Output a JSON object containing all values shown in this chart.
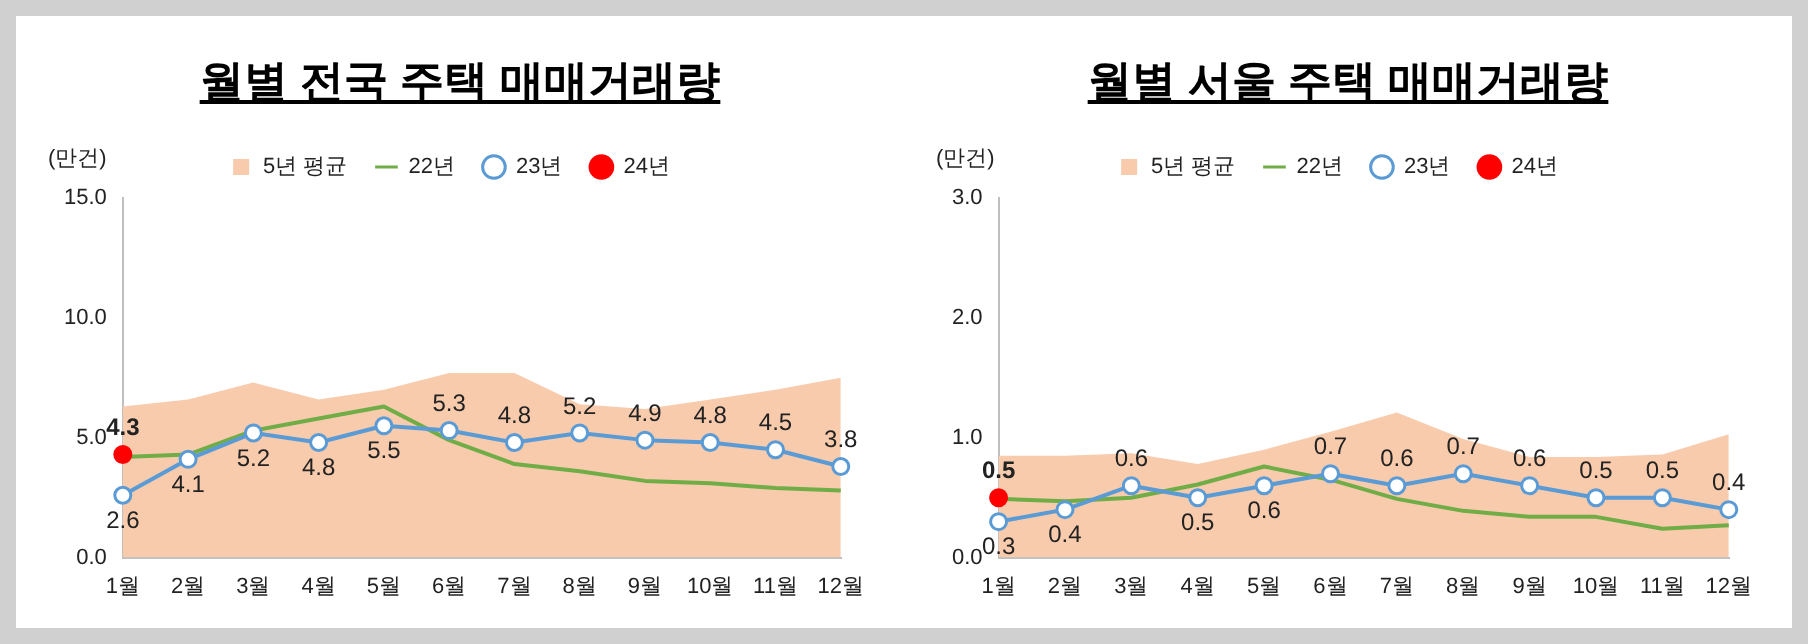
{
  "chart_data": [
    {
      "type": "line",
      "title": "월별 전국 주택 매매거래량",
      "ylabel": "(만건)",
      "categories": [
        "1월",
        "2월",
        "3월",
        "4월",
        "5월",
        "6월",
        "7월",
        "8월",
        "9월",
        "10월",
        "11월",
        "12월"
      ],
      "ylim": [
        0,
        15
      ],
      "yticks": [
        {
          "value": 0,
          "label": "0.0"
        },
        {
          "value": 5,
          "label": "5.0"
        },
        {
          "value": 10,
          "label": "10.0"
        },
        {
          "value": 15,
          "label": "15.0"
        }
      ],
      "grid": false,
      "legend": "top",
      "series": [
        {
          "name": "5년 평균",
          "type": "area",
          "color": "#f8cbad",
          "values": [
            6.3,
            6.6,
            7.3,
            6.6,
            7.0,
            7.7,
            7.7,
            6.4,
            6.2,
            6.6,
            7.0,
            7.5
          ]
        },
        {
          "name": "22년",
          "color": "#70ad47",
          "marker": "none",
          "values": [
            4.2,
            4.3,
            5.3,
            5.8,
            6.3,
            4.9,
            3.9,
            3.6,
            3.2,
            3.1,
            2.9,
            2.8
          ]
        },
        {
          "name": "23년",
          "color": "#5b9bd5",
          "marker": "circle",
          "values": [
            2.6,
            4.1,
            5.2,
            4.8,
            5.5,
            5.3,
            4.8,
            5.2,
            4.9,
            4.8,
            4.5,
            3.8
          ],
          "value_labels": [
            "2.6",
            "4.1",
            "5.2",
            "4.8",
            "5.5",
            "5.3",
            "4.8",
            "5.2",
            "4.9",
            "4.8",
            "4.5",
            "3.8"
          ]
        },
        {
          "name": "24년",
          "color": "#ff0000",
          "marker": "circle",
          "values": [
            4.3,
            null,
            null,
            null,
            null,
            null,
            null,
            null,
            null,
            null,
            null,
            null
          ],
          "value_labels": [
            "4.3",
            null,
            null,
            null,
            null,
            null,
            null,
            null,
            null,
            null,
            null,
            null
          ]
        }
      ]
    },
    {
      "type": "line",
      "title": "월별 서울 주택 매매거래량",
      "ylabel": "(만건)",
      "categories": [
        "1월",
        "2월",
        "3월",
        "4월",
        "5월",
        "6월",
        "7월",
        "8월",
        "9월",
        "10월",
        "11월",
        "12월"
      ],
      "ylim": [
        0,
        3
      ],
      "yticks": [
        {
          "value": 0,
          "label": "0.0"
        },
        {
          "value": 1,
          "label": "1.0"
        },
        {
          "value": 2,
          "label": "2.0"
        },
        {
          "value": 3,
          "label": "3.0"
        }
      ],
      "grid": false,
      "legend": "top",
      "series": [
        {
          "name": "5년 평균",
          "type": "area",
          "color": "#f8cbad",
          "values": [
            0.85,
            0.85,
            0.87,
            0.78,
            0.9,
            1.05,
            1.21,
            0.99,
            0.84,
            0.84,
            0.86,
            1.03
          ]
        },
        {
          "name": "22년",
          "color": "#70ad47",
          "marker": "none",
          "values": [
            0.49,
            0.47,
            0.5,
            0.61,
            0.76,
            0.65,
            0.49,
            0.39,
            0.34,
            0.34,
            0.24,
            0.27
          ]
        },
        {
          "name": "23년",
          "color": "#5b9bd5",
          "marker": "circle",
          "values": [
            0.3,
            0.4,
            0.6,
            0.5,
            0.6,
            0.7,
            0.6,
            0.7,
            0.6,
            0.5,
            0.5,
            0.4
          ],
          "value_labels": [
            "0.3",
            "0.4",
            "0.6",
            "0.5",
            "0.6",
            "0.7",
            "0.6",
            "0.7",
            "0.6",
            "0.5",
            "0.5",
            "0.4"
          ]
        },
        {
          "name": "24년",
          "color": "#ff0000",
          "marker": "circle",
          "values": [
            0.5,
            null,
            null,
            null,
            null,
            null,
            null,
            null,
            null,
            null,
            null,
            null
          ],
          "value_labels": [
            "0.5",
            null,
            null,
            null,
            null,
            null,
            null,
            null,
            null,
            null,
            null,
            null
          ]
        }
      ]
    }
  ]
}
